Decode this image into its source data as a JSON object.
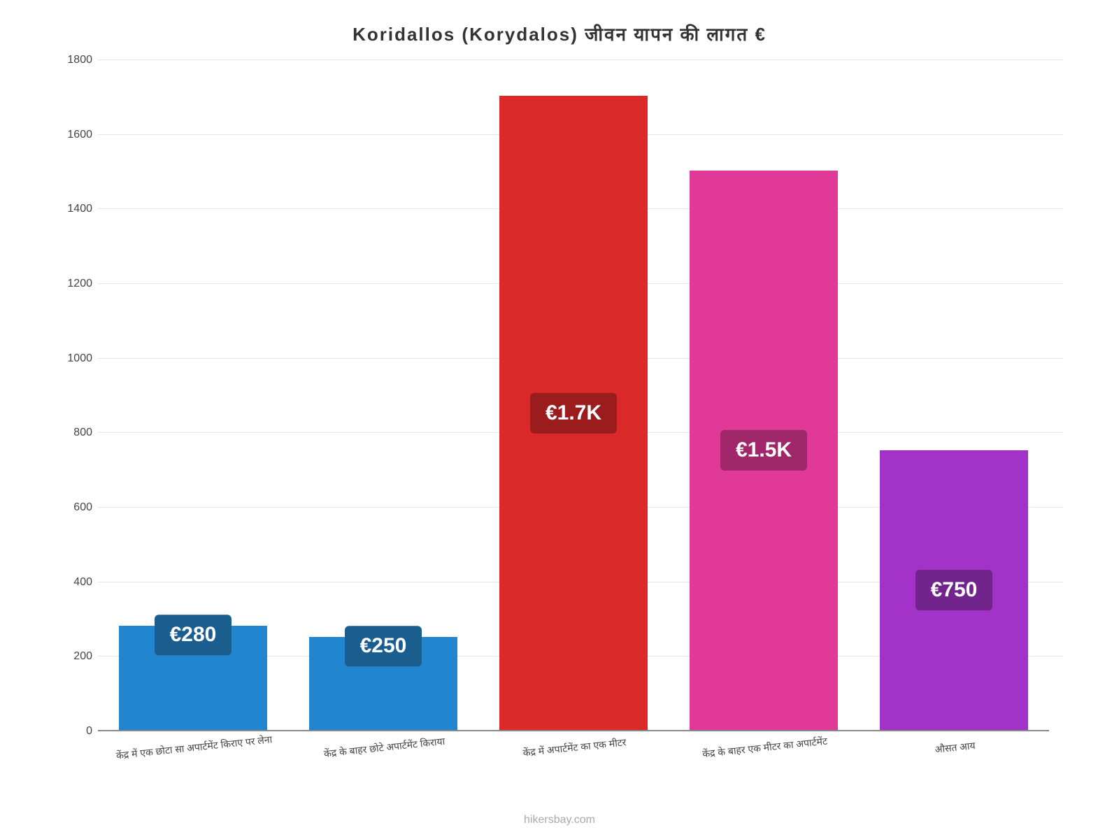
{
  "chart": {
    "type": "bar",
    "title": "Koridallos (Korydalos) जीवन   यापन   की   लागत   €",
    "title_fontsize": 26,
    "title_color": "#333333",
    "background_color": "#ffffff",
    "grid_color": "#e6e6e6",
    "axis_color": "#888888",
    "ylim_min": 0,
    "ylim_max": 1800,
    "ytick_step": 200,
    "yticks": [
      {
        "value": 0,
        "label": "0"
      },
      {
        "value": 200,
        "label": "200"
      },
      {
        "value": 400,
        "label": "400"
      },
      {
        "value": 600,
        "label": "600"
      },
      {
        "value": 800,
        "label": "800"
      },
      {
        "value": 1000,
        "label": "1000"
      },
      {
        "value": 1200,
        "label": "1200"
      },
      {
        "value": 1400,
        "label": "1400"
      },
      {
        "value": 1600,
        "label": "1600"
      },
      {
        "value": 1800,
        "label": "1800"
      }
    ],
    "ytick_fontsize": 16,
    "xlabel_fontsize": 14,
    "xlabel_rotation_deg": -6,
    "bar_width_ratio": 0.78,
    "label_fontsize": 30,
    "label_padding": "12px 22px",
    "label_border_radius": 6,
    "label_text_color": "#ffffff",
    "bars": [
      {
        "category": "केंद्र में एक छोटा सा अपार्टमेंट किराए पर लेना",
        "value": 280,
        "display_label": "€280",
        "bar_color": "#2185d0",
        "label_bg_color": "#1a5d8f",
        "label_top": true
      },
      {
        "category": "केंद्र के बाहर छोटे अपार्टमेंट किराया",
        "value": 250,
        "display_label": "€250",
        "bar_color": "#2185d0",
        "label_bg_color": "#1a5d8f",
        "label_top": true
      },
      {
        "category": "केंद्र में अपार्टमेंट का एक मीटर",
        "value": 1700,
        "display_label": "€1.7K",
        "bar_color": "#db2828",
        "label_bg_color": "#9b1c1c",
        "label_top": false
      },
      {
        "category": "केंद्र के बाहर एक मीटर का अपार्टमेंट",
        "value": 1500,
        "display_label": "€1.5K",
        "bar_color": "#e03997",
        "label_bg_color": "#a0276a",
        "label_top": false
      },
      {
        "category": "औसत आय",
        "value": 750,
        "display_label": "€750",
        "bar_color": "#a333c8",
        "label_bg_color": "#71248b",
        "label_top": false
      }
    ],
    "watermark": "hikersbay.com",
    "watermark_color": "#aaaaaa",
    "watermark_fontsize": 16
  }
}
